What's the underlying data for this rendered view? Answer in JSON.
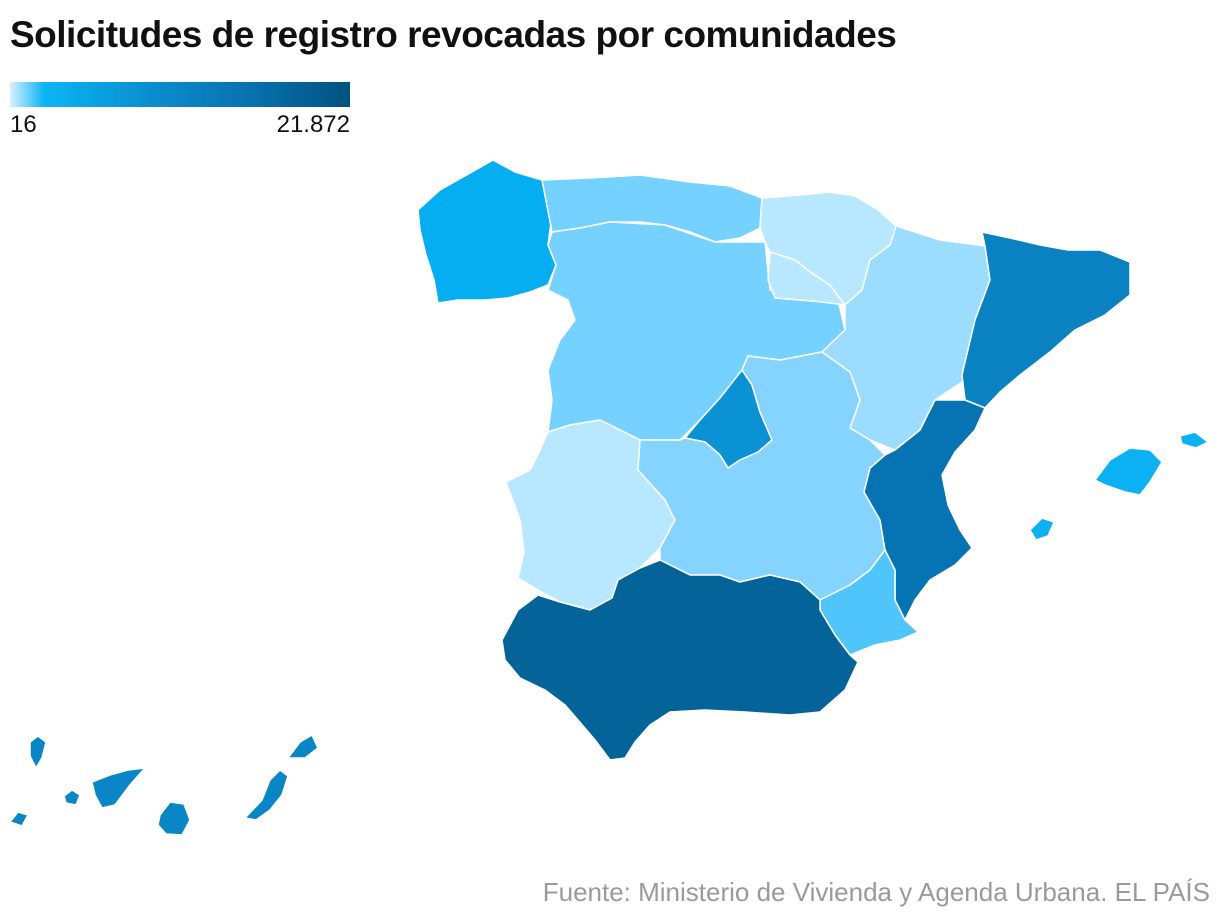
{
  "title": "Solicitudes de registro revocadas por comunidades",
  "legend": {
    "min_label": "16",
    "max_label": "21.872",
    "colors": [
      "#d6f1ff",
      "#0bb5f5",
      "#0a8fd1",
      "#0872b0",
      "#00527f"
    ]
  },
  "source": "Fuente: Ministerio de Vivienda y Agenda Urbana. EL PAÍS",
  "regions": [
    {
      "id": "galicia",
      "color": "#05aef0"
    },
    {
      "id": "asturias-cantabria",
      "color": "#75d1ff"
    },
    {
      "id": "castilla-y-leon",
      "color": "#75d1ff"
    },
    {
      "id": "pais-vasco-navarra",
      "color": "#b8e8ff"
    },
    {
      "id": "la-rioja",
      "color": "#b8e8ff"
    },
    {
      "id": "aragon",
      "color": "#9bdcff"
    },
    {
      "id": "cataluna",
      "color": "#0a82c2"
    },
    {
      "id": "madrid",
      "color": "#0a92d4"
    },
    {
      "id": "extremadura",
      "color": "#b8e8ff"
    },
    {
      "id": "castilla-la-mancha",
      "color": "#85d4ff"
    },
    {
      "id": "comunidad-valenciana",
      "color": "#0673b3"
    },
    {
      "id": "murcia",
      "color": "#4fc5fb"
    },
    {
      "id": "andalucia",
      "color": "#046399"
    },
    {
      "id": "baleares",
      "color": "#0bb1f2"
    },
    {
      "id": "canarias",
      "color": "#0a86c6"
    }
  ]
}
